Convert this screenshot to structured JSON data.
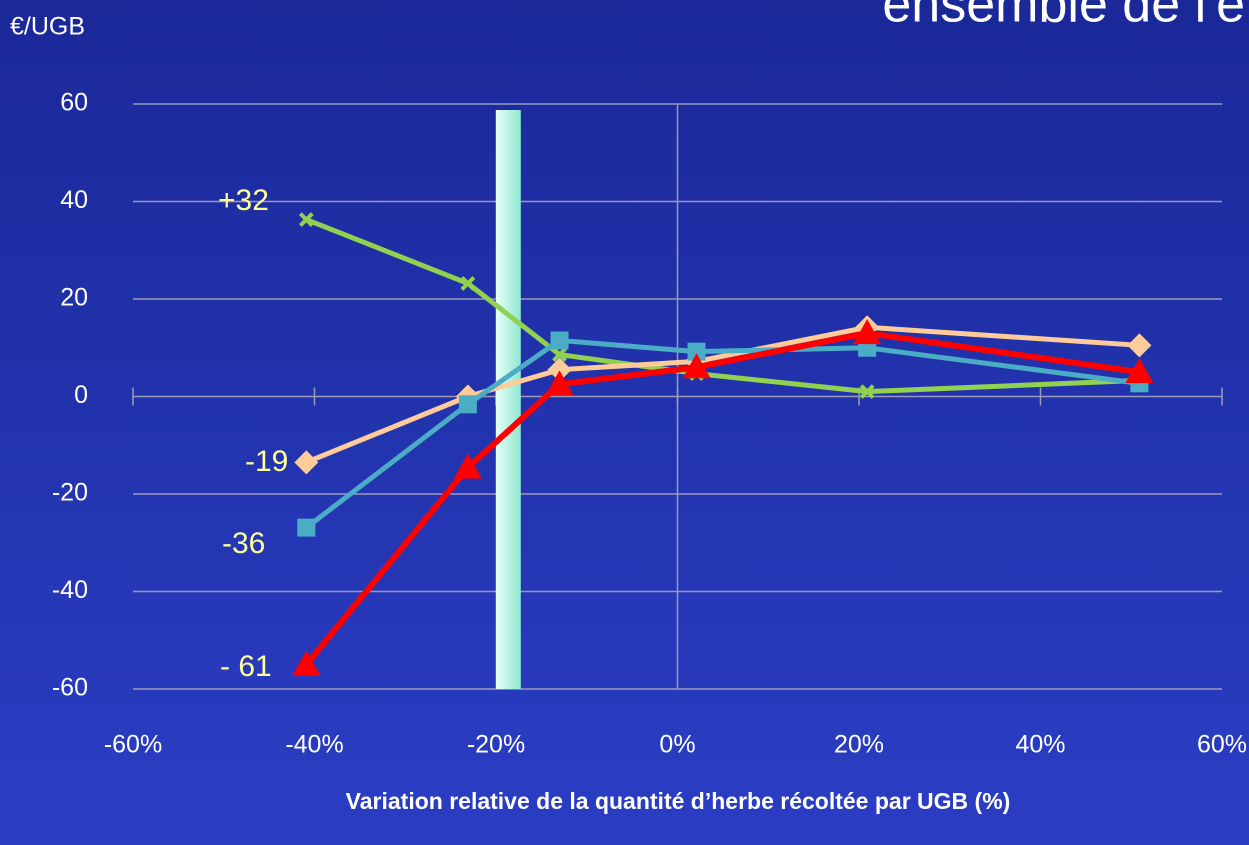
{
  "chart_data": {
    "type": "line",
    "title": "ensemble de l'e",
    "y_label": "€/UGB",
    "x_label": "Variation relative de la quantité d’herbe récoltée par UGB (%)",
    "x": [
      -40.9,
      -23.1,
      -13,
      2.1,
      20.9,
      50.9
    ],
    "series": [
      {
        "color": "#92d050",
        "marker": "x",
        "values": [
          36.3,
          23.2,
          8.6,
          4.7,
          1,
          3.3
        ]
      },
      {
        "color": "#ffcc99",
        "marker": "diamond",
        "values": [
          -13.5,
          0,
          5.5,
          7.2,
          14.2,
          10.5
        ]
      },
      {
        "color": "#4bacc6",
        "marker": "square",
        "values": [
          -26.9,
          -1.6,
          11.5,
          9.2,
          10,
          2.7
        ]
      },
      {
        "color": "#ff0000",
        "marker": "triangle",
        "values": [
          -55,
          -14.6,
          2.5,
          6,
          13,
          5
        ]
      }
    ],
    "annotations": [
      "+32",
      "-19",
      "-36",
      "- 61"
    ],
    "vline_x": -18.7,
    "xlim": [
      -60,
      60
    ],
    "xticks": [
      {
        "value": -60,
        "label": "-60%"
      },
      {
        "value": -40,
        "label": "-40%"
      },
      {
        "value": -20,
        "label": "-20%"
      },
      {
        "value": 0,
        "label": "0%"
      },
      {
        "value": 20,
        "label": "20%"
      },
      {
        "value": 40,
        "label": "40%"
      },
      {
        "value": 60,
        "label": "60%"
      }
    ],
    "ylim": [
      -60,
      60
    ],
    "yticks": [
      -60,
      -40,
      -20,
      0,
      20,
      40,
      60
    ],
    "grid": true
  }
}
